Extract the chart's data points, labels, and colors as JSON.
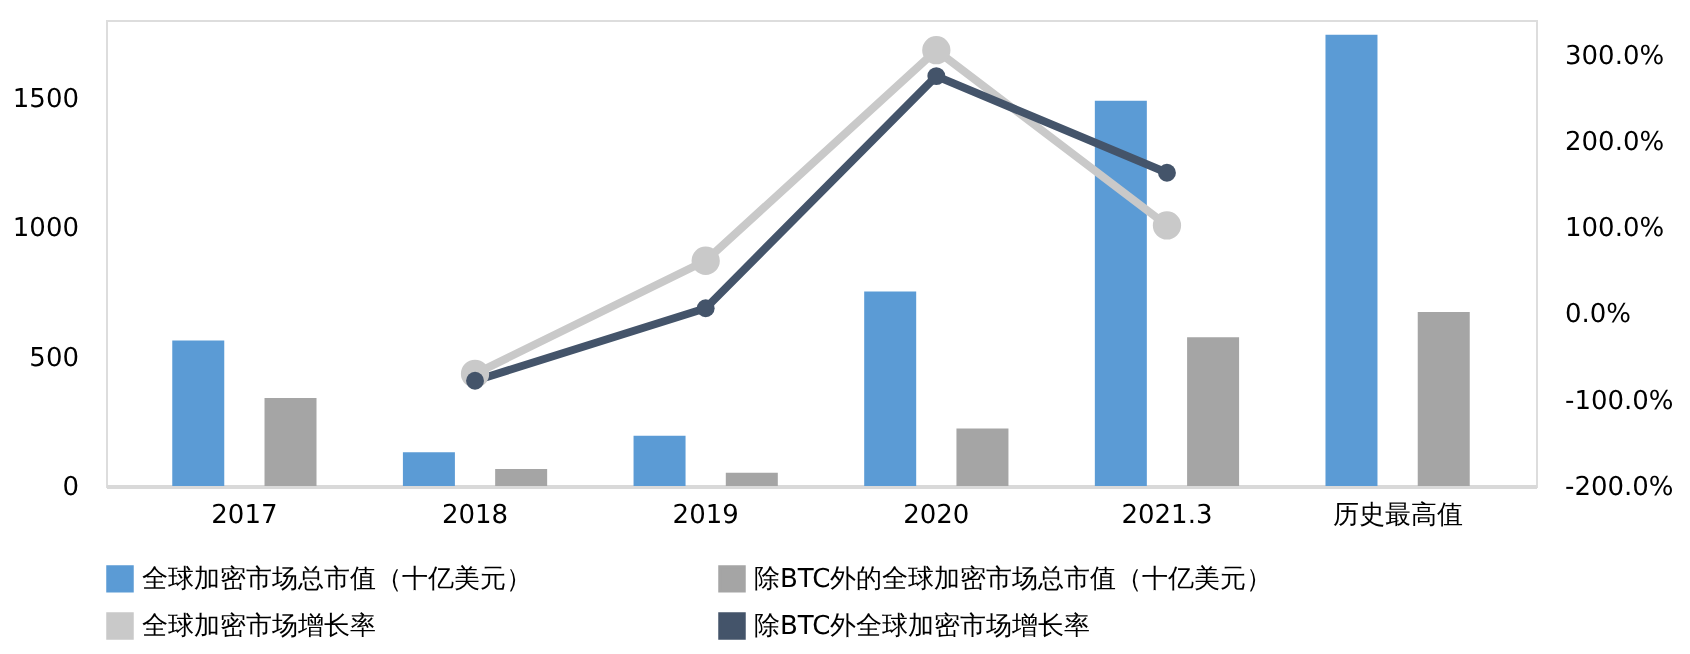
{
  "chart_data": {
    "type": "bar",
    "categories": [
      "2017",
      "2018",
      "2019",
      "2020",
      "2021.3",
      "历史最高值"
    ],
    "series": [
      {
        "name": "全球加密市场总市值（十亿美元）",
        "color": "#5b9bd5",
        "values": [
          562,
          130,
          194,
          751,
          1488,
          1743
        ]
      },
      {
        "name": "除BTC外的全球加密市场总市值（十亿美元）",
        "color": "#a5a5a5",
        "values": [
          340,
          66,
          51,
          222,
          575,
          672
        ]
      },
      {
        "name": "全球加密市场增长率",
        "type": "line",
        "axis": "y2",
        "color": "#c9c9c9",
        "values": [
          null,
          -70,
          61,
          305,
          102,
          null
        ]
      },
      {
        "name": "除BTC外全球加密市场增长率",
        "type": "line",
        "axis": "y2",
        "color": "#44546a",
        "values": [
          null,
          -78,
          6,
          275,
          163,
          null
        ]
      }
    ],
    "ylim": [
      0,
      1800
    ],
    "yticks": [
      0,
      500,
      1000,
      1500
    ],
    "y2lim": [
      -200,
      340
    ],
    "y2ticks": [
      {
        "value": -200,
        "label": "-200.0%"
      },
      {
        "value": -100,
        "label": "-100.0%"
      },
      {
        "value": 0,
        "label": "0.0%"
      },
      {
        "value": 100,
        "label": "100.0%"
      },
      {
        "value": 200,
        "label": "200.0%"
      },
      {
        "value": 300,
        "label": "300.0%"
      }
    ],
    "legend": "bottom",
    "marker": "circle",
    "grid": false
  }
}
